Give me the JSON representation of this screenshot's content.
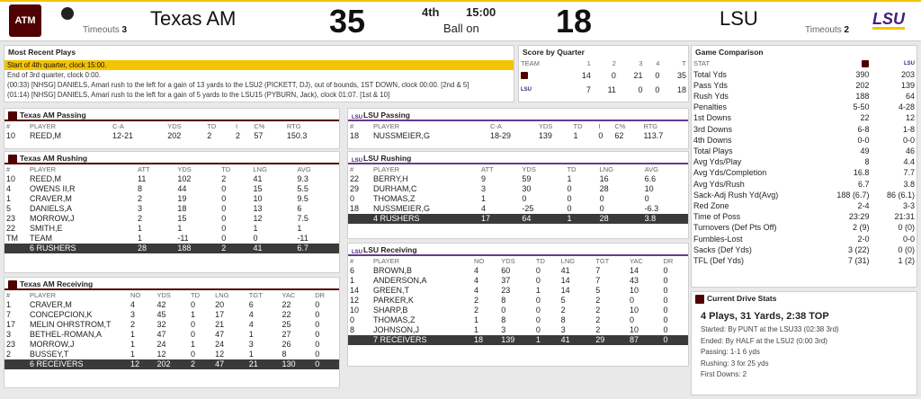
{
  "header": {
    "home": {
      "name": "Texas AM",
      "score": "35",
      "timeouts_label": "Timeouts",
      "timeouts": "3",
      "logo_text": "ATM"
    },
    "away": {
      "name": "LSU",
      "score": "18",
      "timeouts_label": "Timeouts",
      "timeouts": "2",
      "logo_text": "LSU"
    },
    "period": "4th",
    "clock": "15:00",
    "ball_on": "Ball on",
    "accent": "#f5c400"
  },
  "recent_plays": {
    "title": "Most Recent Plays",
    "items": [
      "Start of 4th quarter, clock 15:00.",
      "End of 3rd quarter, clock 0:00.",
      "(00:33) [NHSG] DANIELS, Amari rush to the left for a gain of 13 yards to the LSU2 (PICKETT, DJ), out of bounds, 1ST DOWN, clock 00:00. [2nd & 5]",
      "(01:14) [NHSG] DANIELS, Amari rush to the left for a gain of 5 yards to the LSU15 (PYBURN, Jack), clock 01:07. [1st & 10]"
    ]
  },
  "score_by_quarter": {
    "title": "Score by Quarter",
    "headers": [
      "TEAM",
      "1",
      "2",
      "3",
      "4",
      "T"
    ],
    "rows": [
      {
        "team": "TAM",
        "q": [
          "14",
          "0",
          "21",
          "0",
          "35"
        ]
      },
      {
        "team": "LSU",
        "q": [
          "7",
          "11",
          "0",
          "0",
          "18"
        ]
      }
    ]
  },
  "tam_passing": {
    "title": "Texas AM Passing",
    "headers": [
      "#",
      "PLAYER",
      "C-A",
      "YDS",
      "TD",
      "I",
      "C%",
      "RTG"
    ],
    "rows": [
      [
        "10",
        "REED,M",
        "12-21",
        "202",
        "2",
        "2",
        "57",
        "150.3"
      ]
    ]
  },
  "lsu_passing": {
    "title": "LSU Passing",
    "headers": [
      "#",
      "PLAYER",
      "C-A",
      "YDS",
      "TD",
      "I",
      "C%",
      "RTG"
    ],
    "rows": [
      [
        "18",
        "NUSSMEIER,G",
        "18-29",
        "139",
        "1",
        "0",
        "62",
        "113.7"
      ]
    ]
  },
  "tam_rushing": {
    "title": "Texas AM Rushing",
    "headers": [
      "#",
      "PLAYER",
      "ATT",
      "YDS",
      "TD",
      "LNG",
      "AVG"
    ],
    "rows": [
      [
        "10",
        "REED,M",
        "11",
        "102",
        "2",
        "41",
        "9.3"
      ],
      [
        "4",
        "OWENS II,R",
        "8",
        "44",
        "0",
        "15",
        "5.5"
      ],
      [
        "1",
        "CRAVER,M",
        "2",
        "19",
        "0",
        "10",
        "9.5"
      ],
      [
        "5",
        "DANIELS,A",
        "3",
        "18",
        "0",
        "13",
        "6"
      ],
      [
        "23",
        "MORROW,J",
        "2",
        "15",
        "0",
        "12",
        "7.5"
      ],
      [
        "22",
        "SMITH,E",
        "1",
        "1",
        "0",
        "1",
        "1"
      ],
      [
        "TM",
        "TEAM",
        "1",
        "-11",
        "0",
        "0",
        "-11"
      ]
    ],
    "total": [
      "",
      "6 RUSHERS",
      "28",
      "188",
      "2",
      "41",
      "6.7"
    ]
  },
  "lsu_rushing": {
    "title": "LSU Rushing",
    "headers": [
      "#",
      "PLAYER",
      "ATT",
      "YDS",
      "TD",
      "LNG",
      "AVG"
    ],
    "rows": [
      [
        "22",
        "BERRY,H",
        "9",
        "59",
        "1",
        "16",
        "6.6"
      ],
      [
        "29",
        "DURHAM,C",
        "3",
        "30",
        "0",
        "28",
        "10"
      ],
      [
        "0",
        "THOMAS,Z",
        "1",
        "0",
        "0",
        "0",
        "0"
      ],
      [
        "18",
        "NUSSMEIER,G",
        "4",
        "-25",
        "0",
        "0",
        "-6.3"
      ]
    ],
    "total": [
      "",
      "4 RUSHERS",
      "17",
      "64",
      "1",
      "28",
      "3.8"
    ]
  },
  "tam_receiving": {
    "title": "Texas AM Receiving",
    "headers": [
      "#",
      "PLAYER",
      "NO",
      "YDS",
      "TD",
      "LNG",
      "TGT",
      "YAC",
      "DR"
    ],
    "rows": [
      [
        "1",
        "CRAVER,M",
        "4",
        "42",
        "0",
        "20",
        "6",
        "22",
        "0"
      ],
      [
        "7",
        "CONCEPCION,K",
        "3",
        "45",
        "1",
        "17",
        "4",
        "22",
        "0"
      ],
      [
        "17",
        "MELIN OHRSTROM,T",
        "2",
        "32",
        "0",
        "21",
        "4",
        "25",
        "0"
      ],
      [
        "3",
        "BETHEL-ROMAN,A",
        "1",
        "47",
        "0",
        "47",
        "1",
        "27",
        "0"
      ],
      [
        "23",
        "MORROW,J",
        "1",
        "24",
        "1",
        "24",
        "3",
        "26",
        "0"
      ],
      [
        "2",
        "BUSSEY,T",
        "1",
        "12",
        "0",
        "12",
        "1",
        "8",
        "0"
      ]
    ],
    "total": [
      "",
      "6 RECEIVERS",
      "12",
      "202",
      "2",
      "47",
      "21",
      "130",
      "0"
    ]
  },
  "lsu_receiving": {
    "title": "LSU Receiving",
    "headers": [
      "#",
      "PLAYER",
      "NO",
      "YDS",
      "TD",
      "LNG",
      "TGT",
      "YAC",
      "DR"
    ],
    "rows": [
      [
        "6",
        "BROWN,B",
        "4",
        "60",
        "0",
        "41",
        "7",
        "14",
        "0"
      ],
      [
        "1",
        "ANDERSON,A",
        "4",
        "37",
        "0",
        "14",
        "7",
        "43",
        "0"
      ],
      [
        "14",
        "GREEN,T",
        "4",
        "23",
        "1",
        "14",
        "5",
        "10",
        "0"
      ],
      [
        "12",
        "PARKER,K",
        "2",
        "8",
        "0",
        "5",
        "2",
        "0",
        "0"
      ],
      [
        "10",
        "SHARP,B",
        "2",
        "0",
        "0",
        "2",
        "2",
        "10",
        "0"
      ],
      [
        "0",
        "THOMAS,Z",
        "1",
        "8",
        "0",
        "8",
        "2",
        "0",
        "0"
      ],
      [
        "8",
        "JOHNSON,J",
        "1",
        "3",
        "0",
        "3",
        "2",
        "10",
        "0"
      ]
    ],
    "total": [
      "",
      "7 RECEIVERS",
      "18",
      "139",
      "1",
      "41",
      "29",
      "87",
      "0"
    ]
  },
  "game_comparison": {
    "title": "Game Comparison",
    "stat_header": "STAT",
    "rows": [
      [
        "Total Yds",
        "390",
        "203"
      ],
      [
        "Pass Yds",
        "202",
        "139"
      ],
      [
        "Rush Yds",
        "188",
        "64"
      ],
      [
        "Penalties",
        "5-50",
        "4-28"
      ],
      [
        "1st Downs",
        "22",
        "12"
      ],
      [
        "3rd Downs",
        "6-8",
        "1-8"
      ],
      [
        "4th Downs",
        "0-0",
        "0-0"
      ],
      [
        "Total Plays",
        "49",
        "46"
      ],
      [
        "Avg Yds/Play",
        "8",
        "4.4"
      ],
      [
        "Avg Yds/Completion",
        "16.8",
        "7.7"
      ],
      [
        "Avg Yds/Rush",
        "6.7",
        "3.8"
      ],
      [
        "Sack-Adj Rush Yd(Avg)",
        "188 (6.7)",
        "86 (6.1)"
      ],
      [
        "Red Zone",
        "2-4",
        "3-3"
      ],
      [
        "Time of Poss",
        "23:29",
        "21:31"
      ],
      [
        "Turnovers (Def Pts Off)",
        "2 (9)",
        "0 (0)"
      ],
      [
        "Fumbles-Lost",
        "2-0",
        "0-0"
      ],
      [
        "Sacks (Def Yds)",
        "3 (22)",
        "0 (0)"
      ],
      [
        "TFL (Def Yds)",
        "7 (31)",
        "1 (2)"
      ]
    ]
  },
  "drive": {
    "title": "Current Drive Stats",
    "summary": "4 Plays, 31 Yards, 2:38 TOP",
    "lines": [
      "Started: By PUNT at the LSU33 (02:38 3rd)",
      "Ended: By HALF at the LSU2 (0:00 3rd)",
      "Passing: 1-1 6 yds",
      "Rushing: 3 for 25 yds",
      "First Downs: 2"
    ]
  }
}
